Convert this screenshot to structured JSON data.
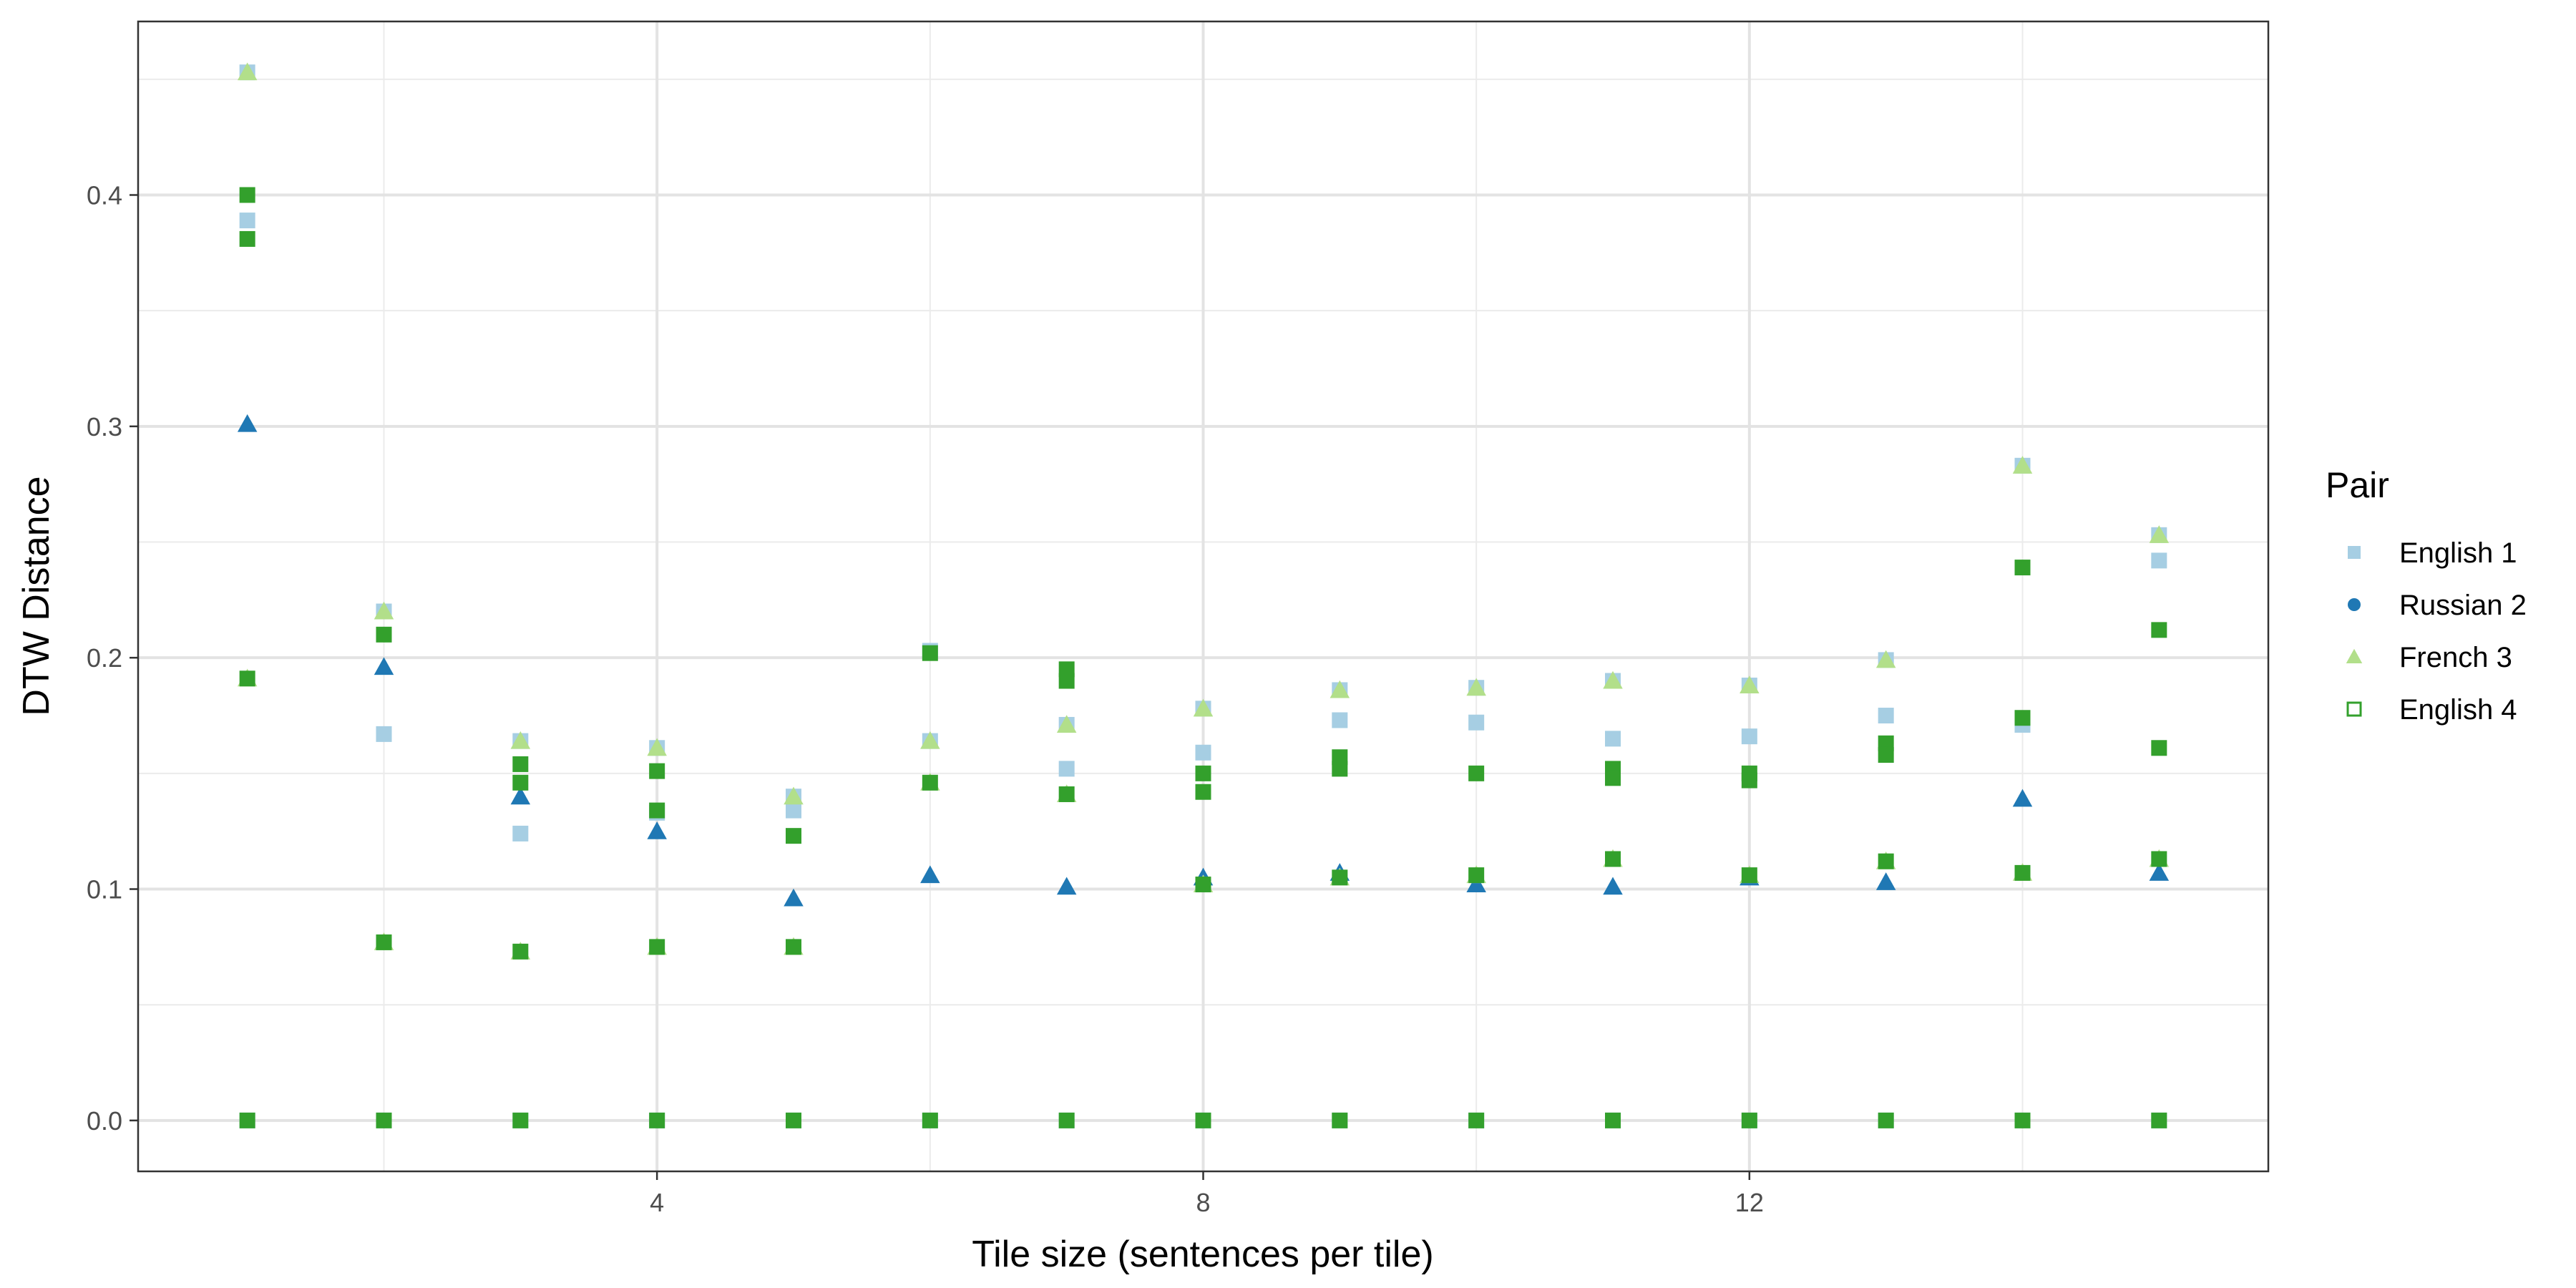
{
  "chart_data": {
    "type": "scatter",
    "title": "",
    "xlabel": "Tile size (sentences per tile)",
    "ylabel": "DTW Distance",
    "xlim": [
      0.2,
      15.8
    ],
    "ylim": [
      -0.022,
      0.475
    ],
    "x_ticks": [
      4,
      8,
      12
    ],
    "x_tick_labels": [
      "4",
      "8",
      "12"
    ],
    "y_ticks": [
      0.0,
      0.1,
      0.2,
      0.3,
      0.4
    ],
    "y_tick_labels": [
      "0.0",
      "0.1",
      "0.2",
      "0.3",
      "0.4"
    ],
    "grid": true,
    "legend": {
      "title": "Pair",
      "placement": "right",
      "entries": [
        "English 1",
        "Russian 2",
        "French 3",
        "English 4"
      ]
    },
    "series": [
      {
        "name": "English 1",
        "color": "#a6cee3",
        "shape": "square-filled",
        "points": [
          [
            1,
            0.453
          ],
          [
            1,
            0.389
          ],
          [
            1,
            0.0
          ],
          [
            2,
            0.22
          ],
          [
            2,
            0.167
          ],
          [
            2,
            0.0
          ],
          [
            3,
            0.164
          ],
          [
            3,
            0.124
          ],
          [
            3,
            0.0
          ],
          [
            4,
            0.161
          ],
          [
            4,
            0.133
          ],
          [
            4,
            0.0
          ],
          [
            5,
            0.14
          ],
          [
            5,
            0.134
          ],
          [
            5,
            0.0
          ],
          [
            6,
            0.203
          ],
          [
            6,
            0.164
          ],
          [
            6,
            0.0
          ],
          [
            7,
            0.171
          ],
          [
            7,
            0.152
          ],
          [
            7,
            0.0
          ],
          [
            8,
            0.178
          ],
          [
            8,
            0.159
          ],
          [
            8,
            0.0
          ],
          [
            9,
            0.186
          ],
          [
            9,
            0.173
          ],
          [
            9,
            0.0
          ],
          [
            10,
            0.187
          ],
          [
            10,
            0.172
          ],
          [
            10,
            0.0
          ],
          [
            11,
            0.19
          ],
          [
            11,
            0.165
          ],
          [
            11,
            0.0
          ],
          [
            12,
            0.188
          ],
          [
            12,
            0.166
          ],
          [
            12,
            0.0
          ],
          [
            13,
            0.199
          ],
          [
            13,
            0.175
          ],
          [
            13,
            0.0
          ],
          [
            14,
            0.283
          ],
          [
            14,
            0.171
          ],
          [
            14,
            0.0
          ],
          [
            15,
            0.253
          ],
          [
            15,
            0.242
          ],
          [
            15,
            0.0
          ]
        ]
      },
      {
        "name": "Russian 2",
        "color": "#1f78b4",
        "shape": "triangle-filled",
        "points": [
          [
            1,
            0.301
          ],
          [
            2,
            0.196
          ],
          [
            3,
            0.14
          ],
          [
            4,
            0.125
          ],
          [
            5,
            0.096
          ],
          [
            6,
            0.106
          ],
          [
            7,
            0.101
          ],
          [
            8,
            0.105
          ],
          [
            9,
            0.107
          ],
          [
            10,
            0.102
          ],
          [
            11,
            0.101
          ],
          [
            12,
            0.105
          ],
          [
            13,
            0.103
          ],
          [
            14,
            0.139
          ],
          [
            15,
            0.107
          ]
        ]
      },
      {
        "name": "French 3",
        "color": "#b2df8a",
        "shape": "triangle-filled",
        "points": [
          [
            1,
            0.453
          ],
          [
            1,
            0.191
          ],
          [
            2,
            0.22
          ],
          [
            2,
            0.077
          ],
          [
            3,
            0.164
          ],
          [
            3,
            0.073
          ],
          [
            4,
            0.161
          ],
          [
            4,
            0.075
          ],
          [
            5,
            0.14
          ],
          [
            5,
            0.075
          ],
          [
            6,
            0.164
          ],
          [
            6,
            0.146
          ],
          [
            7,
            0.171
          ],
          [
            7,
            0.141
          ],
          [
            8,
            0.178
          ],
          [
            8,
            0.102
          ],
          [
            9,
            0.186
          ],
          [
            9,
            0.105
          ],
          [
            10,
            0.187
          ],
          [
            10,
            0.106
          ],
          [
            11,
            0.19
          ],
          [
            11,
            0.113
          ],
          [
            12,
            0.188
          ],
          [
            12,
            0.106
          ],
          [
            13,
            0.199
          ],
          [
            13,
            0.112
          ],
          [
            14,
            0.283
          ],
          [
            14,
            0.107
          ],
          [
            15,
            0.253
          ],
          [
            15,
            0.113
          ]
        ]
      },
      {
        "name": "English 4",
        "color": "#33a02c",
        "shape": "square-filled",
        "points": [
          [
            1,
            0.4
          ],
          [
            1,
            0.381
          ],
          [
            1,
            0.191
          ],
          [
            1,
            0.0
          ],
          [
            2,
            0.21
          ],
          [
            2,
            0.077
          ],
          [
            2,
            0.0
          ],
          [
            3,
            0.154
          ],
          [
            3,
            0.146
          ],
          [
            3,
            0.073
          ],
          [
            3,
            0.0
          ],
          [
            4,
            0.151
          ],
          [
            4,
            0.134
          ],
          [
            4,
            0.075
          ],
          [
            4,
            0.0
          ],
          [
            5,
            0.123
          ],
          [
            5,
            0.075
          ],
          [
            5,
            0.0
          ],
          [
            6,
            0.202
          ],
          [
            6,
            0.146
          ],
          [
            6,
            0.0
          ],
          [
            7,
            0.195
          ],
          [
            7,
            0.19
          ],
          [
            7,
            0.141
          ],
          [
            7,
            0.0
          ],
          [
            8,
            0.15
          ],
          [
            8,
            0.142
          ],
          [
            8,
            0.102
          ],
          [
            8,
            0.0
          ],
          [
            9,
            0.157
          ],
          [
            9,
            0.152
          ],
          [
            9,
            0.105
          ],
          [
            9,
            0.0
          ],
          [
            10,
            0.15
          ],
          [
            10,
            0.106
          ],
          [
            10,
            0.0
          ],
          [
            11,
            0.152
          ],
          [
            11,
            0.148
          ],
          [
            11,
            0.113
          ],
          [
            11,
            0.0
          ],
          [
            12,
            0.15
          ],
          [
            12,
            0.147
          ],
          [
            12,
            0.106
          ],
          [
            12,
            0.0
          ],
          [
            13,
            0.163
          ],
          [
            13,
            0.158
          ],
          [
            13,
            0.112
          ],
          [
            13,
            0.0
          ],
          [
            14,
            0.239
          ],
          [
            14,
            0.174
          ],
          [
            14,
            0.107
          ],
          [
            14,
            0.0
          ],
          [
            15,
            0.212
          ],
          [
            15,
            0.161
          ],
          [
            15,
            0.113
          ],
          [
            15,
            0.0
          ]
        ]
      }
    ]
  }
}
